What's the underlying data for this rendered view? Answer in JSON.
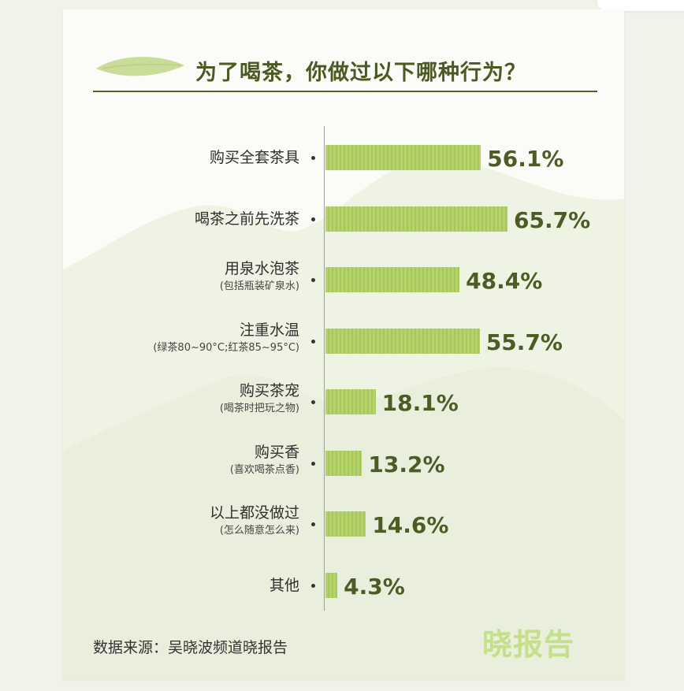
{
  "header": {
    "title": "为了喝茶，你做过以下哪种行为？"
  },
  "chart_data": {
    "type": "bar",
    "orientation": "horizontal",
    "title": "为了喝茶，你做过以下哪种行为？",
    "categories": [
      {
        "label": "购买全套茶具",
        "note": ""
      },
      {
        "label": "喝茶之前先洗茶",
        "note": ""
      },
      {
        "label": "用泉水泡茶",
        "note": "(包括瓶装矿泉水)"
      },
      {
        "label": "注重水温",
        "note": "(绿茶80~90°C;红茶85~95°C)"
      },
      {
        "label": "购买茶宠",
        "note": "(喝茶时把玩之物)"
      },
      {
        "label": "购买香",
        "note": "(喜欢喝茶点香)"
      },
      {
        "label": "以上都没做过",
        "note": "(怎么随意怎么来)"
      },
      {
        "label": "其他",
        "note": ""
      }
    ],
    "values": [
      56.1,
      65.7,
      48.4,
      55.7,
      18.1,
      13.2,
      14.6,
      4.3
    ],
    "value_labels": [
      "56.1%",
      "65.7%",
      "48.4%",
      "55.7%",
      "18.1%",
      "13.2%",
      "14.6%",
      "4.3%"
    ],
    "unit": "%",
    "bar_color": "#b5d26b",
    "grid": false
  },
  "footer": {
    "source": "数据来源：吴晓波频道晓报告",
    "brand": "晓报告"
  },
  "colors": {
    "title": "#4a5a22",
    "value_text": "#4d5b24",
    "brand": "#c5e08a"
  }
}
